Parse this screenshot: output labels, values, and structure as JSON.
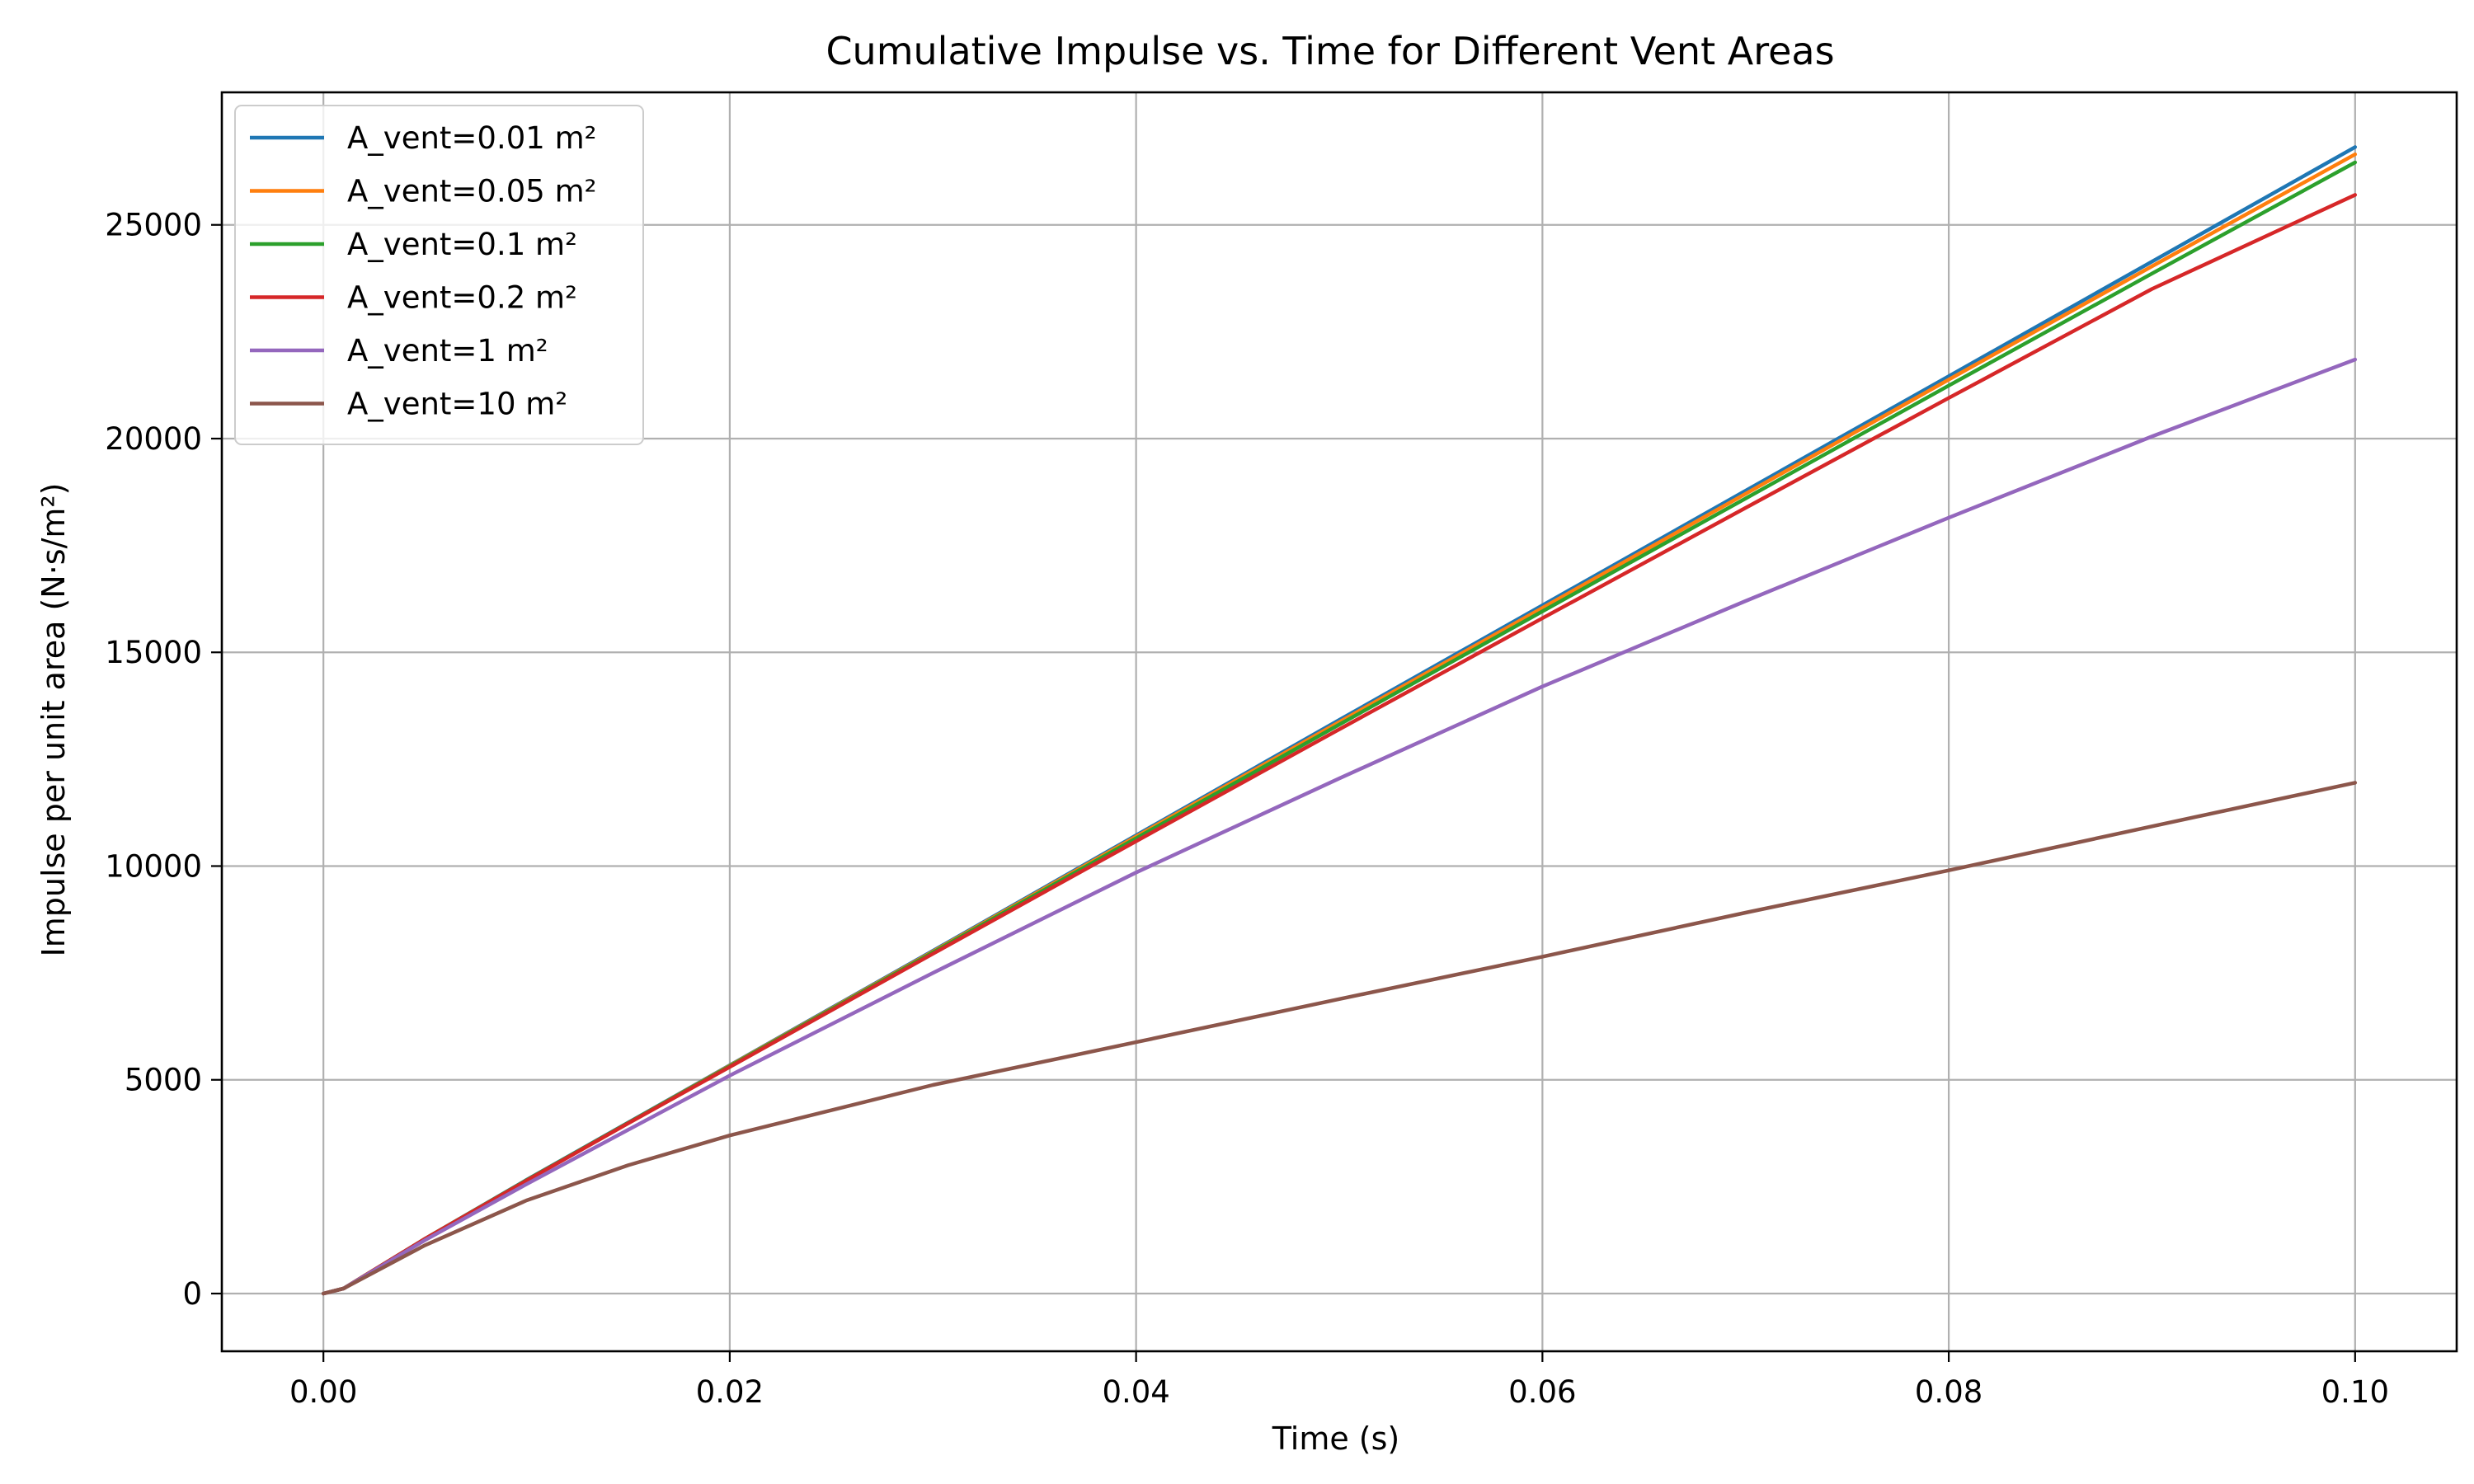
{
  "chart_data": {
    "type": "line",
    "title": "Cumulative Impulse vs. Time for Different Vent Areas",
    "xlabel": "Time (s)",
    "ylabel": "Impulse per unit area (N·s/m²)",
    "xlim": [
      -0.005,
      0.105
    ],
    "ylim": [
      -1350,
      28100
    ],
    "xticks": [
      0.0,
      0.02,
      0.04,
      0.06,
      0.08,
      0.1
    ],
    "xtick_labels": [
      "0.00",
      "0.02",
      "0.04",
      "0.06",
      "0.08",
      "0.10"
    ],
    "yticks": [
      0,
      5000,
      10000,
      15000,
      20000,
      25000
    ],
    "ytick_labels": [
      "0",
      "5000",
      "10000",
      "15000",
      "20000",
      "25000"
    ],
    "grid": true,
    "legend_position": "top-left",
    "x": [
      0,
      0.0005,
      0.001,
      0.005,
      0.01,
      0.015,
      0.02,
      0.03,
      0.04,
      0.05,
      0.06,
      0.07,
      0.08,
      0.09,
      0.1
    ],
    "series": [
      {
        "name": "A_vent=0.01 m²",
        "color": "#1f77b4",
        "values": [
          0,
          60,
          120,
          1280,
          2660,
          4000,
          5340,
          8020,
          10720,
          13420,
          16100,
          18780,
          21460,
          24140,
          26820
        ]
      },
      {
        "name": "A_vent=0.05 m²",
        "color": "#ff7f0e",
        "values": [
          0,
          60,
          120,
          1280,
          2650,
          3990,
          5330,
          8000,
          10690,
          13370,
          16040,
          18710,
          21380,
          24030,
          26650
        ]
      },
      {
        "name": "A_vent=0.1 m²",
        "color": "#2ca02c",
        "values": [
          0,
          60,
          120,
          1280,
          2650,
          3990,
          5320,
          7980,
          10650,
          13310,
          15960,
          18600,
          21240,
          23860,
          26460
        ]
      },
      {
        "name": "A_vent=0.2 m²",
        "color": "#d62728",
        "values": [
          0,
          60,
          120,
          1280,
          2640,
          3980,
          5300,
          7950,
          10580,
          13200,
          15800,
          18380,
          20950,
          23500,
          25700
        ]
      },
      {
        "name": "A_vent=1 m²",
        "color": "#9467bd",
        "values": [
          0,
          60,
          120,
          1250,
          2560,
          3830,
          5100,
          7500,
          9850,
          12050,
          14200,
          16200,
          18150,
          20050,
          21850
        ]
      },
      {
        "name": "A_vent=10 m²",
        "color": "#8c564b",
        "values": [
          0,
          60,
          120,
          1130,
          2180,
          3000,
          3700,
          4880,
          5880,
          6890,
          7880,
          8910,
          9900,
          10930,
          11950
        ]
      }
    ]
  }
}
